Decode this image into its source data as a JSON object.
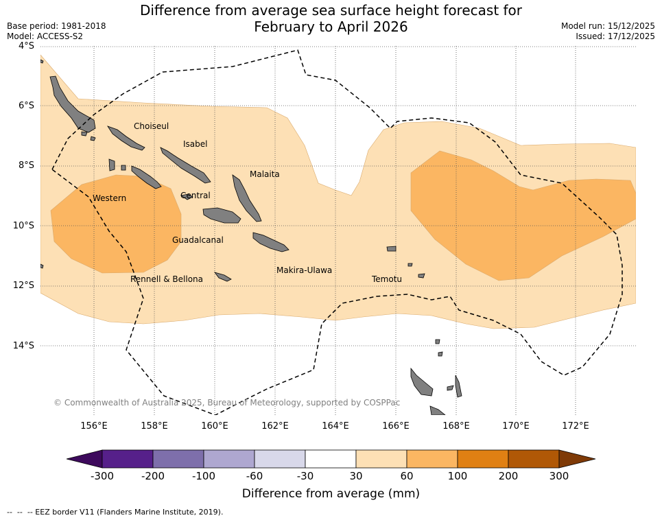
{
  "title_line1": "Difference from average sea surface height forecast for",
  "title_line2": "February to April 2026",
  "base_period": "Base period: 1981-2018",
  "model": "Model: ACCESS-S2",
  "model_run": "Model run: 15/12/2025",
  "issued": "Issued: 17/12/2025",
  "lat_labels": [
    "4°S",
    "6°S",
    "8°S",
    "10°S",
    "12°S",
    "14°S"
  ],
  "lon_labels": [
    "156°E",
    "158°E",
    "160°E",
    "162°E",
    "164°E",
    "166°E",
    "168°E",
    "170°E",
    "172°E"
  ],
  "provinces": {
    "choiseul": "Choiseul",
    "isabel": "Isabel",
    "malaita": "Malaita",
    "western": "Western",
    "central": "Central",
    "guadalcanal": "Guadalcanal",
    "makira": "Makira-Ulawa",
    "rennell": "Rennell & Bellona",
    "temotu": "Temotu"
  },
  "credit": "© Commonwealth of Australia 2025, Bureau of Meteorology, supported by COSPPac",
  "colorbar": {
    "title": "Difference from average (mm)",
    "ticks": [
      "-300",
      "-200",
      "-100",
      "-60",
      "-30",
      "30",
      "60",
      "100",
      "200",
      "300"
    ],
    "colors": [
      "#3d0a5c",
      "#56208a",
      "#7e6fab",
      "#aea7d0",
      "#d8d8ea",
      "#ffffff",
      "#fde0b5",
      "#fbb662",
      "#e08013",
      "#b05806",
      "#7f3a07"
    ]
  },
  "colors": {
    "low_positive": "#fde0b5",
    "mid_positive": "#fbb662",
    "land": "#808080"
  },
  "legend_text": "--  --  -- EEZ border V11 (Flanders Marine Institute, 2019)."
}
